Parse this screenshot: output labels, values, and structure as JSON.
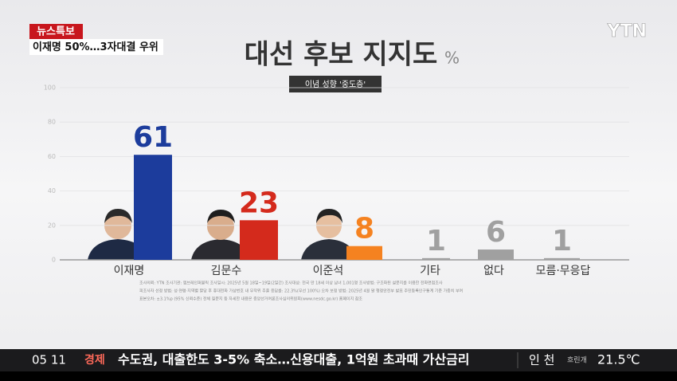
{
  "header": {
    "tag": "뉴스특보",
    "headline": "이재명 50%…3자대결 우위",
    "logo": "YTN"
  },
  "chart_data": {
    "type": "bar",
    "title": "대선 후보 지지도",
    "unit": "%",
    "subtitle": "이념 성향 '중도층'",
    "categories": [
      "이재명",
      "김문수",
      "이준석",
      "기타",
      "없다",
      "모름·무응답"
    ],
    "values": [
      61,
      23,
      8,
      1,
      6,
      1
    ],
    "colors": [
      "#1c3c9c",
      "#d42a1c",
      "#f58220",
      "#a0a0a0",
      "#a0a0a0",
      "#a0a0a0"
    ],
    "ylim": [
      0,
      100
    ],
    "yticks": [
      0,
      20,
      40,
      60,
      80,
      100
    ],
    "grid": true
  },
  "footnotes": [
    "조사의뢰: YTN   조사기관: 엠브레인퍼블릭   조사일시: 2025년 5월 18일~19일(2일간)   조사대상: 전국 만 18세 이상 남녀 1,001명   조사방법: 구조화된 설문지를 이용한 전화면접조사",
    "피조사자 선정 방법: 성·연령·지역별 할당 후 휴대전화 가상번호 내 무작위 추출   응답률: 22.3%(무선 100%)   오차 보정 방법: 2025년 4월 말 행정안전부 발표 주민등록인구통계 기준 가중치 부여",
    "표본오차: ±3.1%p (95% 신뢰수준)   전체 질문지 등 자세한 내용은 중앙선거여론조사심의위원회(www.nesdc.go.kr) 홈페이지 참조"
  ],
  "ticker": {
    "date": "05 11",
    "section": "경제",
    "text": "수도권, 대출한도 3-5% 축소…신용대출, 1억원 초과때 가산금리",
    "city": "인 천",
    "weather": "흐린개",
    "temperature": "21.5℃"
  }
}
